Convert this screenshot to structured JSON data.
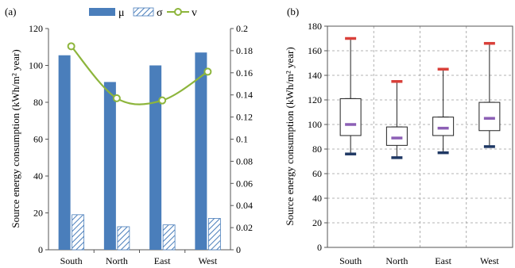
{
  "chart_data": [
    {
      "panel_label": "(a)",
      "type": "bar",
      "categories": [
        "South",
        "North",
        "East",
        "West"
      ],
      "ylabel": "Source energy consumption (kWh/m² year)",
      "ylim": [
        0,
        120
      ],
      "yticks": [
        0,
        20,
        40,
        60,
        80,
        100,
        120
      ],
      "y2lim": [
        0,
        0.2
      ],
      "y2ticks": [
        "0",
        "0.02",
        "0.04",
        "0.06",
        "0.08",
        "0.1",
        "0.12",
        "0.14",
        "0.16",
        "0.18",
        "0.2"
      ],
      "series": [
        {
          "name": "μ",
          "kind": "bar",
          "fill": "solid",
          "color": "#4a7ebb",
          "values": [
            105.5,
            91,
            100,
            107
          ]
        },
        {
          "name": "σ",
          "kind": "bar",
          "fill": "hatched",
          "color": "#4a7ebb",
          "values": [
            19,
            12.5,
            13.5,
            17
          ]
        },
        {
          "name": "v",
          "kind": "line",
          "axis": "secondary",
          "color": "#8db53c",
          "values": [
            0.184,
            0.137,
            0.135,
            0.161
          ]
        }
      ],
      "legend_position": "top",
      "grid": false
    },
    {
      "panel_label": "(b)",
      "type": "box",
      "categories": [
        "South",
        "North",
        "East",
        "West"
      ],
      "ylabel": "Source energy consumption (kWh/m² year)",
      "ylim": [
        0,
        180
      ],
      "yticks": [
        0,
        20,
        40,
        60,
        80,
        100,
        120,
        140,
        160,
        180
      ],
      "grid": true,
      "boxes": [
        {
          "min": 76,
          "q1": 91,
          "median": 100,
          "q3": 121,
          "max": 170
        },
        {
          "min": 73,
          "q1": 83,
          "median": 89,
          "q3": 98,
          "max": 135
        },
        {
          "min": 77,
          "q1": 91,
          "median": 97,
          "q3": 106,
          "max": 145
        },
        {
          "min": 82,
          "q1": 95,
          "median": 105,
          "q3": 118,
          "max": 166
        }
      ],
      "colors": {
        "max_marker": "#d9403a",
        "median_marker": "#8c5fb5",
        "min_marker": "#1f3864"
      }
    }
  ]
}
